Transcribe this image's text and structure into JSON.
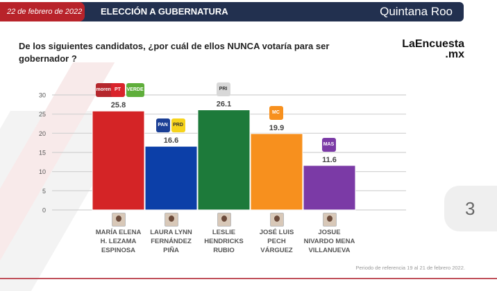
{
  "header": {
    "date": "22 de febrero de 2022",
    "title": "ELECCIÓN A GUBERNATURA",
    "state": "Quintana Roo"
  },
  "question": "De los siguientes candidatos, ¿por cuál de ellos NUNCA votaría para ser gobernador ?",
  "brand": {
    "line1": "LaEncuesta",
    "line2": ".mx"
  },
  "page_number": "3",
  "note": "Periodo de referencia 19 al 21 de febrero 2022.",
  "chart_data": {
    "type": "bar",
    "title": "",
    "ylim": [
      0,
      30
    ],
    "yticks": [
      "0",
      "5",
      "10",
      "15",
      "20",
      "25",
      "30"
    ],
    "grid": true,
    "categories": [
      "MARÍA ELENA\nH. LEZAMA\nESPINOSA",
      "LAURA LYNN\nFERNÁNDEZ\nPIÑA",
      "LESLIE\nHENDRICKS\nRUBIO",
      "JOSÉ LUIS\nPECH\nVÁRGUEZ",
      "JOSUE\nNIVARDO MENA\nVILLANUEVA"
    ],
    "values": [
      25.8,
      16.6,
      26.1,
      19.9,
      11.6
    ],
    "value_labels": [
      "25.8",
      "16.6",
      "26.1",
      "19.9",
      "11.6"
    ],
    "colors": [
      "#d42426",
      "#0c3fa8",
      "#1d7a3a",
      "#f7901e",
      "#7b3aa6"
    ],
    "parties": [
      [
        {
          "name": "morena",
          "color": "#b5272d"
        },
        {
          "name": "PT",
          "color": "#d9232b"
        },
        {
          "name": "VERDE",
          "color": "#5fae3b"
        }
      ],
      [
        {
          "name": "PAN",
          "color": "#1b3f95"
        },
        {
          "name": "PRD",
          "color": "#f6d31b"
        }
      ],
      [
        {
          "name": "PRI",
          "color": "#d8d8d8"
        }
      ],
      [
        {
          "name": "MC",
          "color": "#f7901e"
        }
      ],
      [
        {
          "name": "MAS",
          "color": "#7b3aa6"
        }
      ]
    ]
  }
}
